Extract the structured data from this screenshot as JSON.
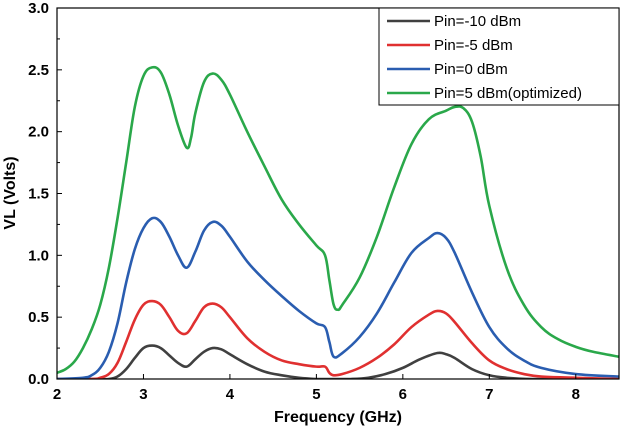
{
  "chart_data": {
    "type": "line",
    "xlabel": "Frequency (GHz)",
    "ylabel": "VL (Volts)",
    "xlim": [
      2,
      8.5
    ],
    "ylim": [
      0,
      3.0
    ],
    "xticks": [
      2,
      3,
      4,
      5,
      6,
      7,
      8
    ],
    "yticks": [
      0.0,
      0.5,
      1.0,
      1.5,
      2.0,
      2.5,
      3.0
    ],
    "ytick_labels": [
      "0.0",
      "0.5",
      "1.0",
      "1.5",
      "2.0",
      "2.5",
      "3.0"
    ],
    "grid": false,
    "legend_position": "top-right",
    "series": [
      {
        "name": "Pin=-10 dBm",
        "color": "#404040",
        "x": [
          2.0,
          2.5,
          2.6,
          2.7,
          2.8,
          2.9,
          3.0,
          3.1,
          3.2,
          3.3,
          3.4,
          3.5,
          3.6,
          3.7,
          3.8,
          3.9,
          4.0,
          4.2,
          4.4,
          4.6,
          4.8,
          5.0,
          5.1,
          5.2,
          5.4,
          5.6,
          5.8,
          6.0,
          6.2,
          6.4,
          6.5,
          6.6,
          6.8,
          7.0,
          7.2,
          7.5,
          8.0,
          8.5
        ],
        "y": [
          0.0,
          0.0,
          0.0,
          0.02,
          0.08,
          0.17,
          0.25,
          0.27,
          0.25,
          0.19,
          0.13,
          0.1,
          0.16,
          0.22,
          0.25,
          0.24,
          0.2,
          0.12,
          0.06,
          0.03,
          0.01,
          0.0,
          0.0,
          0.0,
          0.0,
          0.01,
          0.04,
          0.09,
          0.16,
          0.21,
          0.2,
          0.17,
          0.08,
          0.03,
          0.01,
          0.0,
          0.0,
          0.0
        ]
      },
      {
        "name": "Pin=-5 dBm",
        "color": "#e03030",
        "x": [
          2.0,
          2.4,
          2.5,
          2.6,
          2.7,
          2.8,
          2.9,
          3.0,
          3.1,
          3.2,
          3.3,
          3.4,
          3.5,
          3.6,
          3.7,
          3.8,
          3.9,
          4.0,
          4.2,
          4.4,
          4.6,
          4.8,
          5.0,
          5.1,
          5.15,
          5.2,
          5.3,
          5.5,
          5.7,
          5.9,
          6.1,
          6.3,
          6.4,
          6.5,
          6.6,
          6.8,
          7.0,
          7.2,
          7.4,
          7.6,
          8.0,
          8.5
        ],
        "y": [
          0.0,
          0.0,
          0.01,
          0.04,
          0.13,
          0.3,
          0.48,
          0.6,
          0.63,
          0.6,
          0.5,
          0.39,
          0.37,
          0.47,
          0.58,
          0.61,
          0.58,
          0.5,
          0.33,
          0.22,
          0.15,
          0.12,
          0.1,
          0.1,
          0.05,
          0.03,
          0.04,
          0.09,
          0.17,
          0.28,
          0.42,
          0.52,
          0.55,
          0.53,
          0.46,
          0.29,
          0.15,
          0.08,
          0.04,
          0.02,
          0.01,
          0.0
        ]
      },
      {
        "name": "Pin=0 dBm",
        "color": "#2a5db0",
        "x": [
          2.0,
          2.3,
          2.4,
          2.5,
          2.6,
          2.7,
          2.8,
          2.9,
          3.0,
          3.1,
          3.2,
          3.3,
          3.4,
          3.5,
          3.6,
          3.7,
          3.8,
          3.9,
          4.0,
          4.2,
          4.4,
          4.6,
          4.8,
          5.0,
          5.1,
          5.15,
          5.2,
          5.3,
          5.5,
          5.7,
          5.9,
          6.1,
          6.3,
          6.4,
          6.5,
          6.6,
          6.8,
          7.0,
          7.2,
          7.4,
          7.6,
          8.0,
          8.5
        ],
        "y": [
          0.0,
          0.01,
          0.03,
          0.09,
          0.22,
          0.45,
          0.78,
          1.05,
          1.22,
          1.3,
          1.27,
          1.15,
          1.0,
          0.9,
          1.03,
          1.2,
          1.27,
          1.24,
          1.15,
          0.95,
          0.8,
          0.67,
          0.55,
          0.45,
          0.42,
          0.3,
          0.18,
          0.21,
          0.34,
          0.53,
          0.78,
          1.02,
          1.14,
          1.18,
          1.14,
          1.02,
          0.7,
          0.42,
          0.25,
          0.15,
          0.09,
          0.04,
          0.02
        ]
      },
      {
        "name": "Pin=5 dBm(optimized)",
        "color": "#2aa84a",
        "x": [
          2.0,
          2.1,
          2.2,
          2.3,
          2.4,
          2.5,
          2.6,
          2.7,
          2.8,
          2.9,
          3.0,
          3.1,
          3.2,
          3.3,
          3.4,
          3.5,
          3.55,
          3.6,
          3.7,
          3.8,
          3.9,
          4.0,
          4.2,
          4.4,
          4.6,
          4.8,
          5.0,
          5.1,
          5.15,
          5.2,
          5.25,
          5.3,
          5.5,
          5.7,
          5.9,
          6.1,
          6.3,
          6.5,
          6.6,
          6.7,
          6.8,
          6.9,
          7.0,
          7.2,
          7.4,
          7.6,
          7.8,
          8.0,
          8.2,
          8.5
        ],
        "y": [
          0.05,
          0.08,
          0.14,
          0.25,
          0.4,
          0.6,
          0.9,
          1.3,
          1.75,
          2.2,
          2.45,
          2.52,
          2.48,
          2.3,
          2.05,
          1.87,
          1.95,
          2.15,
          2.4,
          2.47,
          2.42,
          2.3,
          2.0,
          1.72,
          1.45,
          1.25,
          1.08,
          1.0,
          0.8,
          0.6,
          0.56,
          0.6,
          0.82,
          1.15,
          1.55,
          1.9,
          2.1,
          2.17,
          2.2,
          2.19,
          2.08,
          1.8,
          1.4,
          0.9,
          0.6,
          0.42,
          0.32,
          0.26,
          0.22,
          0.18
        ]
      }
    ]
  }
}
